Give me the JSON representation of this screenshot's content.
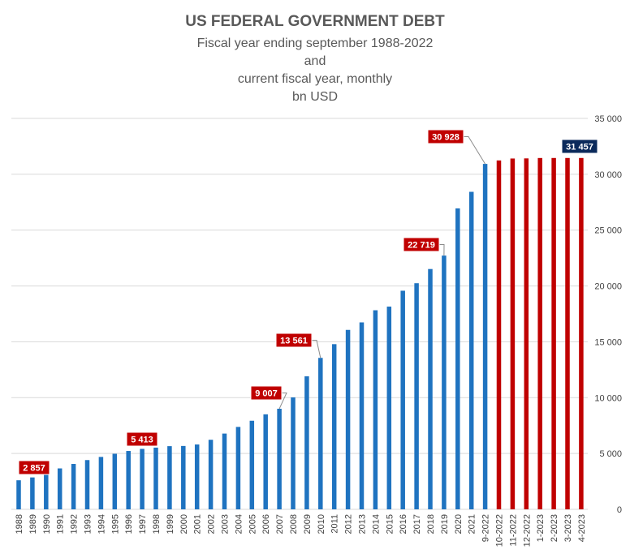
{
  "title_lines": {
    "main": "US FEDERAL GOVERNMENT DEBT",
    "sub1": "Fiscal year ending september 1988-2022",
    "sub2": "and",
    "sub3": "current fiscal year, monthly",
    "sub4": "bn USD"
  },
  "colors": {
    "annual": "#1f73c0",
    "monthly": "#c00000",
    "callout_red": "#c00000",
    "callout_navy": "#0b2a5b",
    "grid": "#d9d9d9"
  },
  "chart_data": {
    "type": "bar",
    "title": "US FEDERAL GOVERNMENT DEBT",
    "subtitle": "Fiscal year ending september 1988-2022 and current fiscal year, monthly bn USD",
    "ylim": [
      0,
      35000
    ],
    "yticks": [
      0,
      5000,
      10000,
      15000,
      20000,
      25000,
      30000,
      35000
    ],
    "ytick_labels": [
      "0",
      "5 000",
      "10 000",
      "15 000",
      "20 000",
      "25 000",
      "30 000",
      "35 000"
    ],
    "y_axis_side": "right",
    "grid": true,
    "categories": [
      "1988",
      "1989",
      "1990",
      "1991",
      "1992",
      "1993",
      "1994",
      "1995",
      "1996",
      "1997",
      "1998",
      "1999",
      "2000",
      "2001",
      "2002",
      "2003",
      "2004",
      "2005",
      "2006",
      "2007",
      "2008",
      "2009",
      "2010",
      "2011",
      "2012",
      "2013",
      "2014",
      "2015",
      "2016",
      "2017",
      "2018",
      "2019",
      "2020",
      "2021",
      "9-2022",
      "10-2022",
      "11-2022",
      "12-2022",
      "1-2023",
      "2-2023",
      "3-2023",
      "4-2023"
    ],
    "values": [
      2602,
      2857,
      3233,
      3665,
      4065,
      4411,
      4693,
      4974,
      5225,
      5413,
      5526,
      5656,
      5674,
      5807,
      6228,
      6783,
      7379,
      7933,
      8507,
      9007,
      10025,
      11910,
      13561,
      14790,
      16066,
      16738,
      17824,
      18151,
      19573,
      20245,
      21516,
      22719,
      26945,
      28428,
      30928,
      31238,
      31409,
      31420,
      31455,
      31457,
      31457,
      31457
    ],
    "bar_colors": [
      "annual",
      "annual",
      "annual",
      "annual",
      "annual",
      "annual",
      "annual",
      "annual",
      "annual",
      "annual",
      "annual",
      "annual",
      "annual",
      "annual",
      "annual",
      "annual",
      "annual",
      "annual",
      "annual",
      "annual",
      "annual",
      "annual",
      "annual",
      "annual",
      "annual",
      "annual",
      "annual",
      "annual",
      "annual",
      "annual",
      "annual",
      "annual",
      "annual",
      "annual",
      "annual",
      "monthly",
      "monthly",
      "monthly",
      "monthly",
      "monthly",
      "monthly",
      "monthly"
    ],
    "annotations": [
      {
        "category": "1989",
        "label": "2 857",
        "color": "callout_red"
      },
      {
        "category": "1997",
        "label": "5 413",
        "color": "callout_red"
      },
      {
        "category": "2007",
        "label": "9 007",
        "color": "callout_red"
      },
      {
        "category": "2010",
        "label": "13 561",
        "color": "callout_red"
      },
      {
        "category": "2019",
        "label": "22 719",
        "color": "callout_red"
      },
      {
        "category": "9-2022",
        "label": "30 928",
        "color": "callout_red"
      },
      {
        "category": "4-2023",
        "label": "31 457",
        "color": "callout_navy"
      }
    ]
  }
}
